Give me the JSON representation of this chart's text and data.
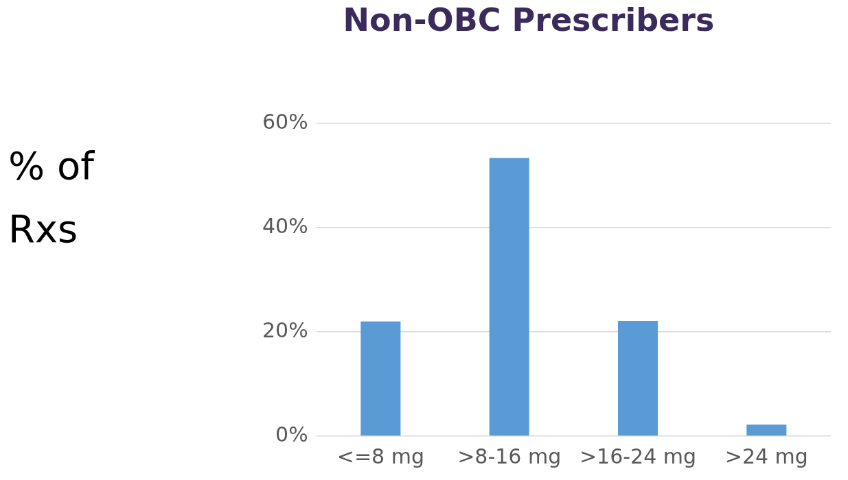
{
  "chart_data": {
    "type": "bar",
    "title": "Non-OBC Prescribers",
    "ylabel": "% of Rxs",
    "categories": [
      "<=8 mg",
      ">8-16 mg",
      ">16-24 mg",
      ">24 mg"
    ],
    "values": [
      22,
      53.4,
      22.1,
      2.2
    ],
    "color": "#5b9bd5",
    "ylim": [
      0,
      60
    ],
    "yticks": [
      {
        "value": 0,
        "label": "0%"
      },
      {
        "value": 20,
        "label": "20%"
      },
      {
        "value": 40,
        "label": "40%"
      },
      {
        "value": 60,
        "label": "60%"
      }
    ],
    "grid": "y",
    "legend": false
  }
}
